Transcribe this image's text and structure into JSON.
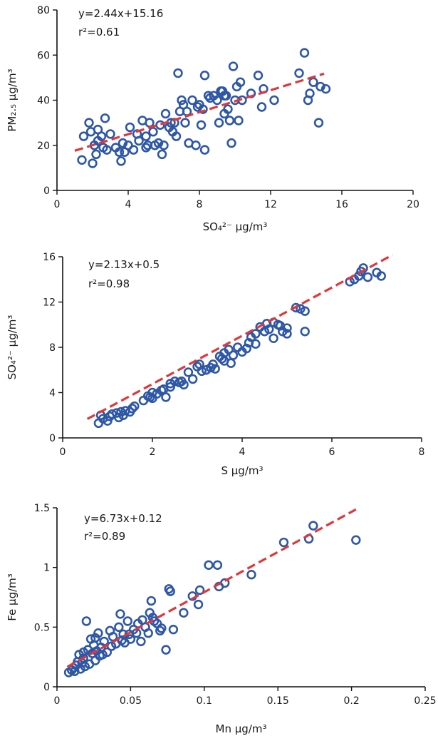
{
  "colors": {
    "points": "#2e57a6",
    "fit": "#e0383a",
    "axis": "#111111"
  },
  "chart_data": [
    {
      "type": "scatter",
      "xlabel": "SO₄²⁻ µg/m³",
      "ylabel": "PM₂.₅ µg/m³",
      "equation": "y=2.44x+15.16",
      "r2_label": "r²=0.61",
      "xlim": [
        0,
        20
      ],
      "ylim": [
        0,
        80
      ],
      "xticks": [
        0,
        4,
        8,
        12,
        16,
        20
      ],
      "yticks": [
        0,
        20,
        40,
        60,
        80
      ],
      "fit": {
        "slope": 2.44,
        "intercept": 15.16,
        "x_range": [
          1,
          15
        ]
      },
      "points": [
        [
          1.4,
          13.5
        ],
        [
          1.5,
          24
        ],
        [
          1.8,
          30
        ],
        [
          1.9,
          26
        ],
        [
          2.0,
          12
        ],
        [
          2.1,
          20
        ],
        [
          2.2,
          16
        ],
        [
          2.3,
          27
        ],
        [
          2.3,
          22
        ],
        [
          2.5,
          24
        ],
        [
          2.6,
          19
        ],
        [
          2.7,
          32
        ],
        [
          2.8,
          18
        ],
        [
          3.0,
          25
        ],
        [
          3.3,
          19
        ],
        [
          3.5,
          17
        ],
        [
          3.6,
          13
        ],
        [
          3.7,
          21
        ],
        [
          3.8,
          17
        ],
        [
          4.0,
          20
        ],
        [
          4.1,
          28
        ],
        [
          4.3,
          18
        ],
        [
          4.5,
          25
        ],
        [
          4.6,
          22
        ],
        [
          4.8,
          31
        ],
        [
          5.0,
          24
        ],
        [
          5.0,
          19
        ],
        [
          5.1,
          20
        ],
        [
          5.2,
          30
        ],
        [
          5.4,
          26
        ],
        [
          5.5,
          20
        ],
        [
          5.7,
          21
        ],
        [
          5.9,
          16
        ],
        [
          6.0,
          20
        ],
        [
          6.1,
          34
        ],
        [
          6.3,
          28
        ],
        [
          6.4,
          30
        ],
        [
          6.5,
          26
        ],
        [
          6.6,
          30
        ],
        [
          6.7,
          24
        ],
        [
          6.8,
          52
        ],
        [
          7.0,
          40
        ],
        [
          7.1,
          38
        ],
        [
          7.2,
          30
        ],
        [
          7.3,
          35
        ],
        [
          7.4,
          21
        ],
        [
          7.6,
          40
        ],
        [
          7.8,
          20
        ],
        [
          8.0,
          38
        ],
        [
          8.1,
          29
        ],
        [
          8.2,
          36
        ],
        [
          8.3,
          18
        ],
        [
          8.3,
          51
        ],
        [
          8.5,
          42
        ],
        [
          8.6,
          41
        ],
        [
          8.8,
          42
        ],
        [
          9.0,
          40
        ],
        [
          9.1,
          30
        ],
        [
          9.2,
          44
        ],
        [
          9.3,
          44
        ],
        [
          9.4,
          34
        ],
        [
          9.5,
          42
        ],
        [
          9.6,
          36
        ],
        [
          9.7,
          31
        ],
        [
          9.8,
          21
        ],
        [
          9.9,
          55
        ],
        [
          10.0,
          40
        ],
        [
          10.1,
          46
        ],
        [
          10.2,
          31
        ],
        [
          10.3,
          48
        ],
        [
          10.4,
          40
        ],
        [
          10.9,
          43
        ],
        [
          11.3,
          51
        ],
        [
          11.5,
          37
        ],
        [
          11.6,
          45
        ],
        [
          13.6,
          52
        ],
        [
          13.9,
          61
        ],
        [
          14.1,
          40
        ],
        [
          14.2,
          43
        ],
        [
          14.4,
          48
        ],
        [
          14.7,
          30
        ],
        [
          14.8,
          46
        ],
        [
          15.1,
          45
        ],
        [
          12.2,
          40
        ],
        [
          7.9,
          37
        ],
        [
          9.4,
          42
        ],
        [
          6.9,
          35
        ],
        [
          5.8,
          29
        ]
      ]
    },
    {
      "type": "scatter",
      "xlabel": "S µg/m³",
      "ylabel": "SO₄²⁻ µg/m³",
      "equation": "y=2.13x+0.5",
      "r2_label": "r²=0.98",
      "xlim": [
        0,
        8
      ],
      "ylim": [
        0,
        16
      ],
      "xticks": [
        0,
        2,
        4,
        6,
        8
      ],
      "yticks": [
        0,
        4,
        8,
        12,
        16
      ],
      "fit": {
        "slope": 2.13,
        "intercept": 0.5,
        "x_range": [
          0.55,
          7.35
        ]
      },
      "points": [
        [
          0.8,
          1.3
        ],
        [
          0.85,
          2.0
        ],
        [
          0.9,
          1.7
        ],
        [
          1.0,
          1.5
        ],
        [
          1.05,
          1.9
        ],
        [
          1.1,
          2.1
        ],
        [
          1.2,
          2.2
        ],
        [
          1.25,
          1.8
        ],
        [
          1.3,
          2.3
        ],
        [
          1.35,
          2.0
        ],
        [
          1.4,
          2.4
        ],
        [
          1.5,
          2.3
        ],
        [
          1.6,
          2.8
        ],
        [
          1.8,
          3.3
        ],
        [
          1.9,
          3.7
        ],
        [
          2.0,
          3.5
        ],
        [
          2.0,
          4.0
        ],
        [
          2.1,
          3.9
        ],
        [
          2.2,
          4.2
        ],
        [
          2.3,
          3.6
        ],
        [
          2.4,
          4.5
        ],
        [
          2.4,
          4.8
        ],
        [
          2.5,
          5.0
        ],
        [
          2.6,
          4.9
        ],
        [
          2.7,
          4.7
        ],
        [
          2.8,
          5.8
        ],
        [
          2.9,
          5.2
        ],
        [
          3.0,
          6.3
        ],
        [
          3.05,
          6.5
        ],
        [
          3.1,
          5.9
        ],
        [
          3.2,
          6.0
        ],
        [
          3.3,
          6.2
        ],
        [
          3.4,
          6.1
        ],
        [
          3.5,
          7.2
        ],
        [
          3.6,
          7.5
        ],
        [
          3.6,
          6.8
        ],
        [
          3.7,
          7.8
        ],
        [
          3.75,
          6.6
        ],
        [
          3.8,
          7.3
        ],
        [
          3.9,
          8.0
        ],
        [
          4.0,
          7.6
        ],
        [
          4.1,
          7.9
        ],
        [
          4.2,
          8.9
        ],
        [
          4.3,
          9.2
        ],
        [
          4.3,
          8.3
        ],
        [
          4.4,
          9.8
        ],
        [
          4.5,
          9.4
        ],
        [
          4.55,
          10.1
        ],
        [
          4.6,
          9.6
        ],
        [
          4.7,
          10.2
        ],
        [
          4.7,
          8.8
        ],
        [
          4.8,
          10.0
        ],
        [
          4.9,
          9.4
        ],
        [
          5.0,
          9.7
        ],
        [
          5.0,
          9.2
        ],
        [
          5.2,
          11.5
        ],
        [
          5.3,
          11.4
        ],
        [
          5.4,
          9.4
        ],
        [
          5.4,
          11.2
        ],
        [
          6.4,
          13.8
        ],
        [
          6.5,
          14.0
        ],
        [
          6.6,
          14.3
        ],
        [
          6.65,
          14.7
        ],
        [
          6.7,
          15.0
        ],
        [
          6.8,
          14.2
        ],
        [
          7.0,
          14.6
        ],
        [
          7.1,
          14.3
        ],
        [
          3.35,
          6.5
        ],
        [
          2.65,
          5.0
        ],
        [
          1.95,
          3.6
        ],
        [
          4.15,
          8.4
        ],
        [
          4.85,
          9.9
        ],
        [
          3.55,
          7.0
        ],
        [
          1.55,
          2.6
        ],
        [
          2.25,
          4.3
        ]
      ]
    },
    {
      "type": "scatter",
      "xlabel": "Mn µg/m³",
      "ylabel": "Fe µg/m³",
      "equation": "y=6.73x+0.12",
      "r2_label": "r²=0.89",
      "xlim": [
        0,
        0.25
      ],
      "ylim": [
        0,
        1.5
      ],
      "xticks": [
        0,
        0.05,
        0.1,
        0.15,
        0.2,
        0.25
      ],
      "xtick_labels": [
        "0",
        "0.05",
        "0.1",
        "0.15",
        "0.2",
        "0.25"
      ],
      "yticks": [
        0,
        0.5,
        1,
        1.5
      ],
      "ytick_labels": [
        "0",
        "0.5",
        "1",
        "1.5"
      ],
      "fit": {
        "slope": 6.73,
        "intercept": 0.12,
        "x_range": [
          0.007,
          0.203
        ]
      },
      "points": [
        [
          0.008,
          0.12
        ],
        [
          0.01,
          0.14
        ],
        [
          0.011,
          0.16
        ],
        [
          0.012,
          0.13
        ],
        [
          0.013,
          0.18
        ],
        [
          0.014,
          0.21
        ],
        [
          0.015,
          0.27
        ],
        [
          0.016,
          0.15
        ],
        [
          0.017,
          0.2
        ],
        [
          0.018,
          0.24
        ],
        [
          0.019,
          0.17
        ],
        [
          0.02,
          0.55
        ],
        [
          0.021,
          0.31
        ],
        [
          0.022,
          0.19
        ],
        [
          0.023,
          0.4
        ],
        [
          0.024,
          0.28
        ],
        [
          0.025,
          0.35
        ],
        [
          0.026,
          0.22
        ],
        [
          0.027,
          0.3
        ],
        [
          0.028,
          0.45
        ],
        [
          0.029,
          0.26
        ],
        [
          0.03,
          0.33
        ],
        [
          0.032,
          0.38
        ],
        [
          0.034,
          0.29
        ],
        [
          0.036,
          0.47
        ],
        [
          0.038,
          0.42
        ],
        [
          0.04,
          0.36
        ],
        [
          0.042,
          0.5
        ],
        [
          0.043,
          0.61
        ],
        [
          0.045,
          0.44
        ],
        [
          0.046,
          0.37
        ],
        [
          0.048,
          0.55
        ],
        [
          0.05,
          0.4
        ],
        [
          0.052,
          0.48
        ],
        [
          0.054,
          0.45
        ],
        [
          0.055,
          0.53
        ],
        [
          0.057,
          0.38
        ],
        [
          0.058,
          0.56
        ],
        [
          0.06,
          0.5
        ],
        [
          0.062,
          0.45
        ],
        [
          0.063,
          0.62
        ],
        [
          0.064,
          0.72
        ],
        [
          0.065,
          0.58
        ],
        [
          0.066,
          0.55
        ],
        [
          0.068,
          0.53
        ],
        [
          0.07,
          0.47
        ],
        [
          0.071,
          0.49
        ],
        [
          0.074,
          0.31
        ],
        [
          0.076,
          0.82
        ],
        [
          0.077,
          0.8
        ],
        [
          0.079,
          0.48
        ],
        [
          0.086,
          0.62
        ],
        [
          0.092,
          0.76
        ],
        [
          0.096,
          0.69
        ],
        [
          0.097,
          0.81
        ],
        [
          0.103,
          1.02
        ],
        [
          0.109,
          1.02
        ],
        [
          0.11,
          0.84
        ],
        [
          0.114,
          0.87
        ],
        [
          0.132,
          0.94
        ],
        [
          0.154,
          1.21
        ],
        [
          0.171,
          1.24
        ],
        [
          0.174,
          1.35
        ],
        [
          0.203,
          1.23
        ],
        [
          0.031,
          0.27
        ],
        [
          0.037,
          0.34
        ],
        [
          0.044,
          0.39
        ],
        [
          0.018,
          0.29
        ],
        [
          0.026,
          0.41
        ],
        [
          0.049,
          0.44
        ]
      ]
    }
  ]
}
